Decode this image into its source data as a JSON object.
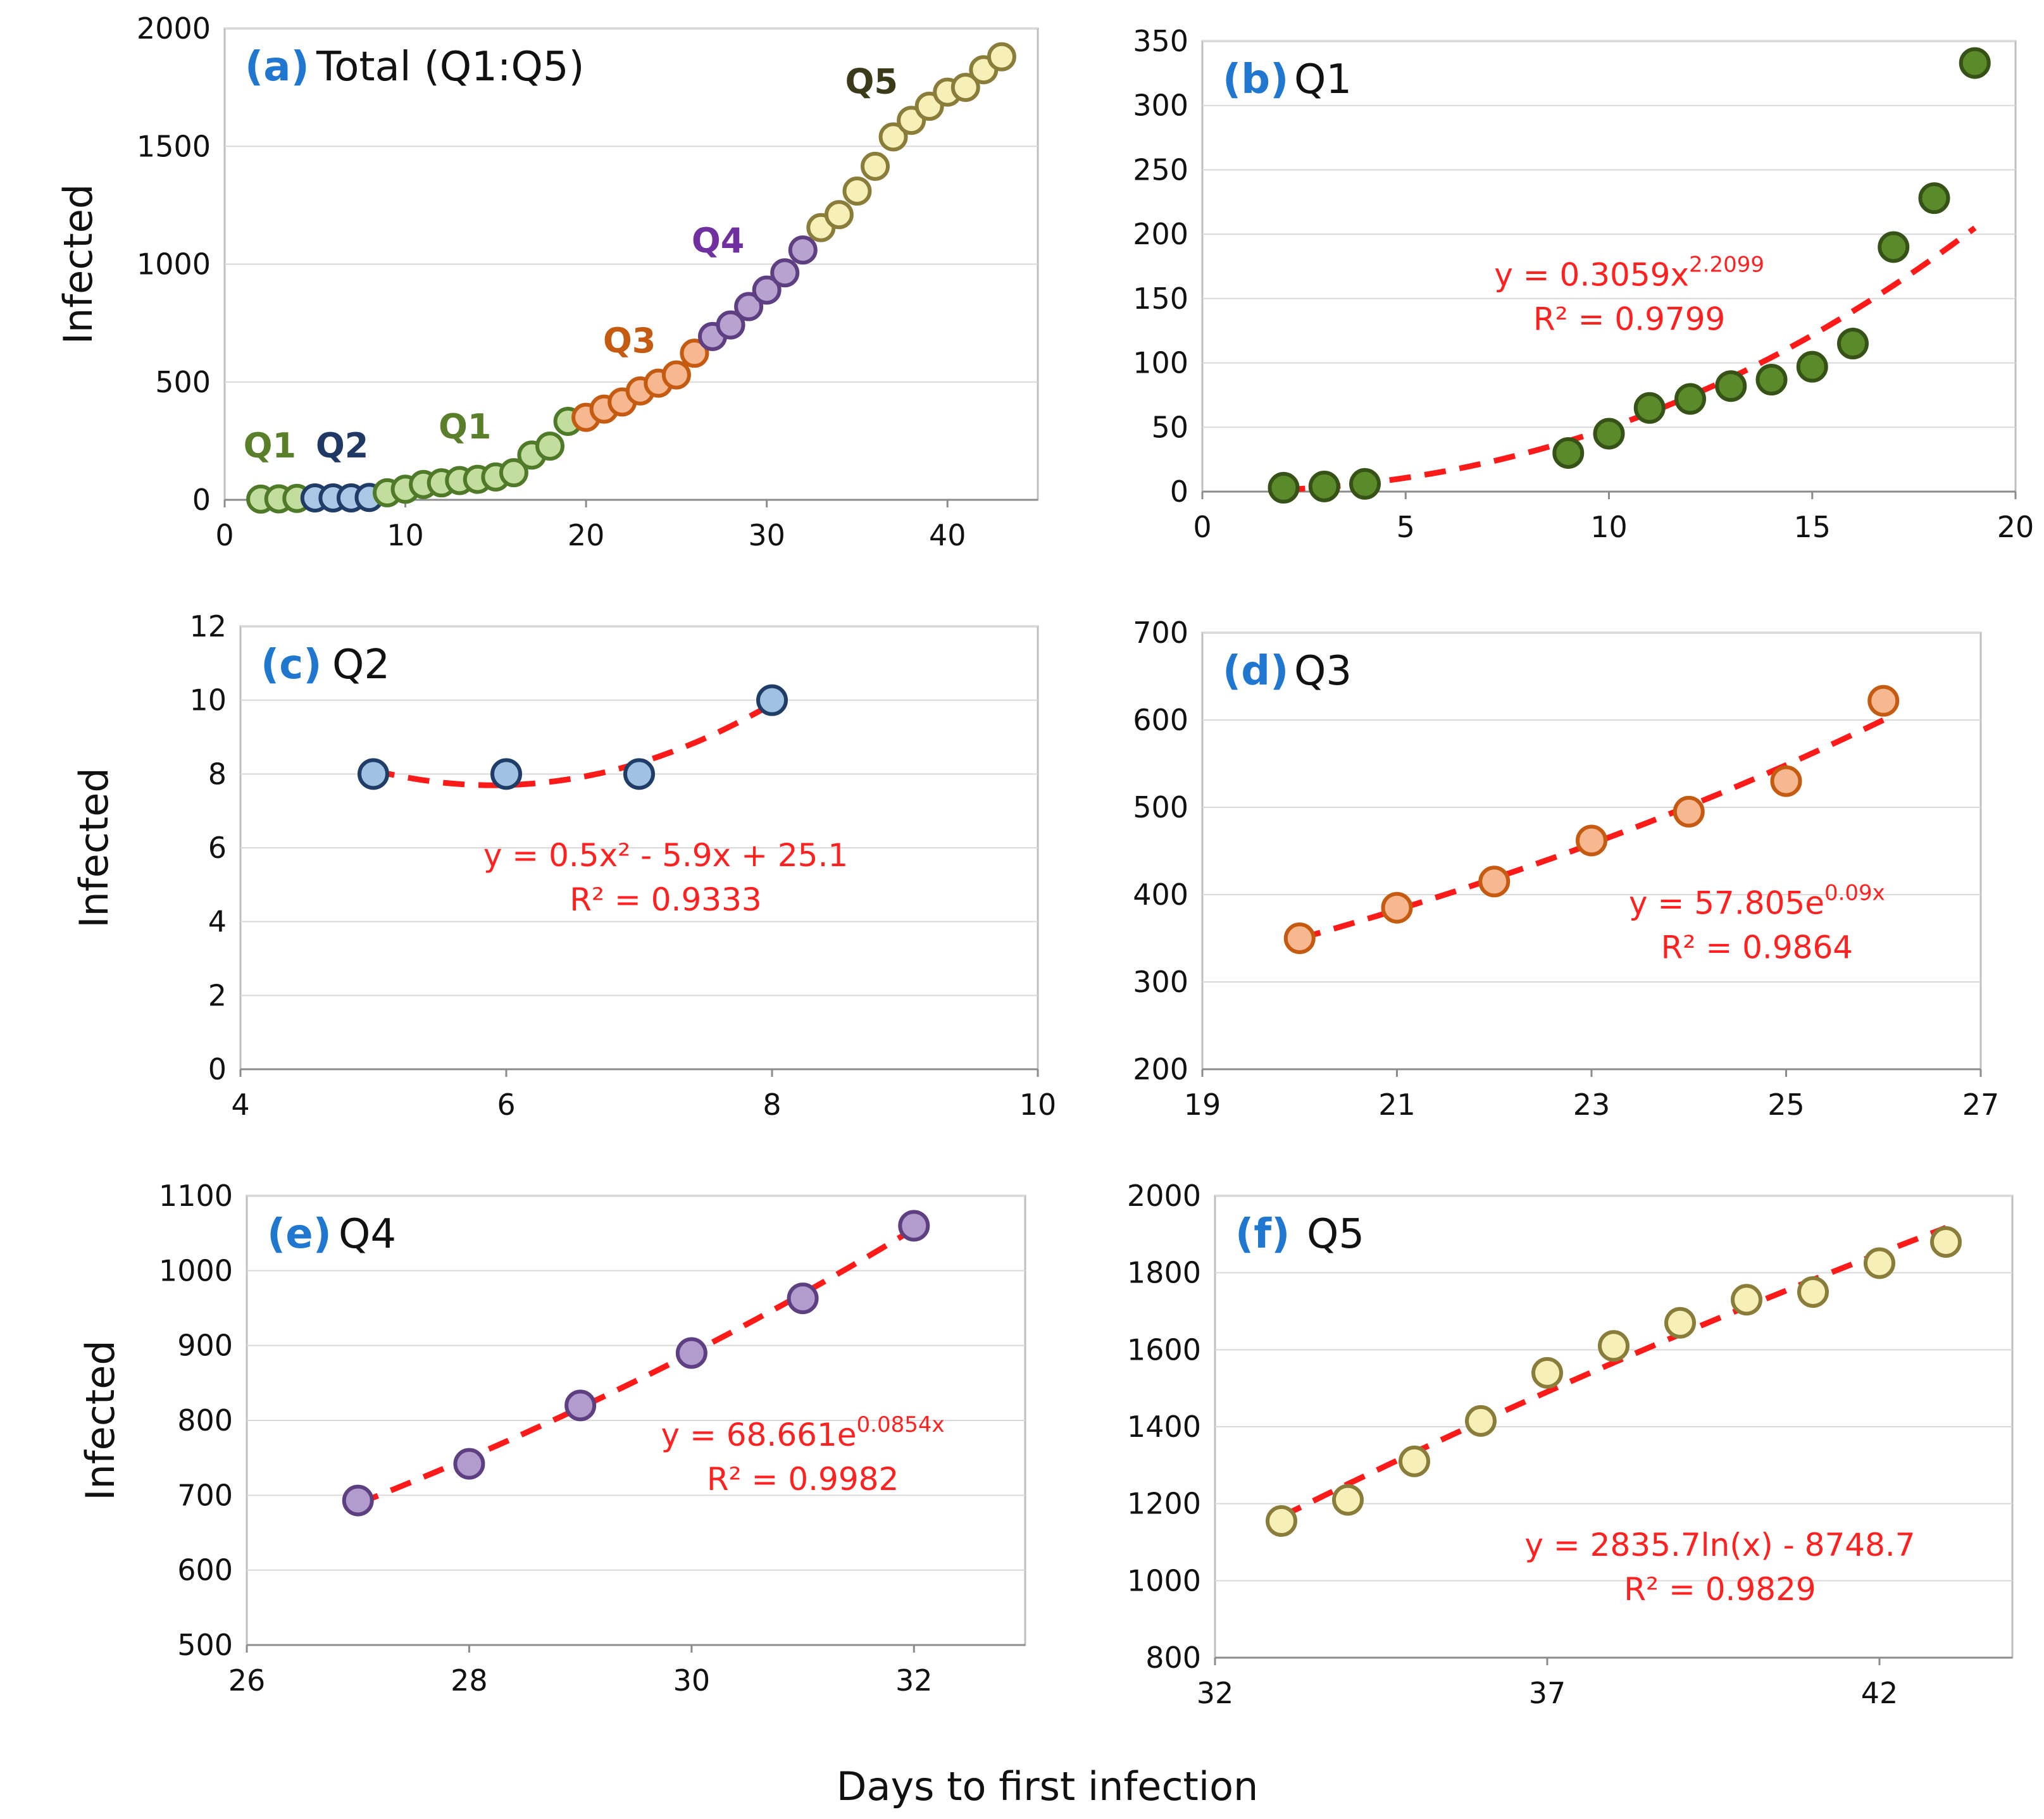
{
  "x_axis_label": "Days to first infection",
  "chart_data": [
    {
      "id": "a",
      "type": "scatter",
      "label": "(a)",
      "title": "Total (Q1:Q5)",
      "ylabel": "Infected",
      "xlim": [
        0,
        45
      ],
      "ylim": [
        0,
        2000
      ],
      "xticks": [
        0,
        10,
        20,
        30,
        40
      ],
      "yticks": [
        0,
        500,
        1000,
        1500,
        2000
      ],
      "series": [
        {
          "name": "Q1",
          "fill": "#c2dd9e",
          "stroke": "#4f7a28",
          "x": [
            2,
            3,
            4
          ],
          "y": [
            3,
            4,
            6
          ]
        },
        {
          "name": "Q2",
          "fill": "#a8c8e6",
          "stroke": "#1f3d66",
          "x": [
            5,
            6,
            7,
            8
          ],
          "y": [
            8,
            8,
            8,
            10
          ]
        },
        {
          "name": "Q1",
          "fill": "#c2dd9e",
          "stroke": "#4f7a28",
          "x": [
            9,
            10,
            11,
            12,
            13,
            14,
            15,
            16,
            17,
            18,
            19
          ],
          "y": [
            30,
            45,
            65,
            72,
            82,
            87,
            97,
            115,
            190,
            228,
            333
          ]
        },
        {
          "name": "Q3",
          "fill": "#f7b891",
          "stroke": "#c55a11",
          "x": [
            20,
            21,
            22,
            23,
            24,
            25,
            26
          ],
          "y": [
            350,
            385,
            415,
            462,
            495,
            530,
            622
          ]
        },
        {
          "name": "Q4",
          "fill": "#b8a2d0",
          "stroke": "#5e3f82",
          "x": [
            27,
            28,
            29,
            30,
            31,
            32
          ],
          "y": [
            693,
            742,
            820,
            890,
            963,
            1060
          ]
        },
        {
          "name": "Q5",
          "fill": "#f6f0b8",
          "stroke": "#8a7d3a",
          "x": [
            33,
            34,
            35,
            36,
            37,
            38,
            39,
            40,
            41,
            42,
            43
          ],
          "y": [
            1155,
            1210,
            1310,
            1415,
            1540,
            1610,
            1670,
            1730,
            1750,
            1825,
            1880
          ]
        }
      ],
      "annotations": [
        {
          "text": "Q1",
          "x": 2.5,
          "y": 180,
          "color": "#5a7f2a"
        },
        {
          "text": "Q2",
          "x": 6.5,
          "y": 180,
          "color": "#1f3864"
        },
        {
          "text": "Q1",
          "x": 13.3,
          "y": 260,
          "color": "#5a7f2a"
        },
        {
          "text": "Q3",
          "x": 22.4,
          "y": 625,
          "color": "#c55a11"
        },
        {
          "text": "Q4",
          "x": 27.3,
          "y": 1050,
          "color": "#7030a0"
        },
        {
          "text": "Q5",
          "x": 35.8,
          "y": 1725,
          "color": "#3b3b1a"
        }
      ]
    },
    {
      "id": "b",
      "type": "scatter",
      "label": "(b)",
      "title": "Q1",
      "ylabel": "",
      "xlim": [
        0,
        20
      ],
      "ylim": [
        0,
        350
      ],
      "xticks": [
        0,
        5,
        10,
        15,
        20
      ],
      "yticks": [
        0,
        50,
        100,
        150,
        200,
        250,
        300,
        350
      ],
      "series": [
        {
          "name": "Q1",
          "fill": "#5b8a2a",
          "stroke": "#365217",
          "x": [
            2,
            3,
            4,
            9,
            10,
            11,
            12,
            13,
            14,
            15,
            16,
            17,
            18,
            19
          ],
          "y": [
            3,
            4,
            6,
            30,
            45,
            65,
            72,
            82,
            87,
            97,
            115,
            190,
            228,
            333
          ]
        }
      ],
      "fit": {
        "kind": "power",
        "a": 0.3059,
        "b": 2.2099,
        "from": 2,
        "to": 19
      },
      "equation": "y = 0.3059x",
      "equation_sup": "2.2099",
      "r2": "R² = 0.9799",
      "eq_pos": {
        "x": 10.5,
        "y": 160
      }
    },
    {
      "id": "c",
      "type": "scatter",
      "label": "(c)",
      "title": "Q2",
      "ylabel": "Infected",
      "xlim": [
        4,
        10
      ],
      "ylim": [
        0,
        12
      ],
      "xticks": [
        4,
        6,
        8,
        10
      ],
      "yticks": [
        0,
        2,
        4,
        6,
        8,
        10,
        12
      ],
      "series": [
        {
          "name": "Q2",
          "fill": "#9fc2e3",
          "stroke": "#1f3d66",
          "x": [
            5,
            6,
            7,
            8
          ],
          "y": [
            8,
            8,
            8,
            10
          ]
        }
      ],
      "fit": {
        "kind": "poly2",
        "a": 0.5,
        "b": -5.9,
        "c": 25.1,
        "from": 5,
        "to": 8
      },
      "equation": "y = 0.5x² - 5.9x + 25.1",
      "equation_sup": "",
      "r2": "R² = 0.9333",
      "eq_pos": {
        "x": 7.2,
        "y": 5.5
      }
    },
    {
      "id": "d",
      "type": "scatter",
      "label": "(d)",
      "title": "Q3",
      "ylabel": "",
      "xlim": [
        19,
        27
      ],
      "ylim": [
        200,
        700
      ],
      "xticks": [
        19,
        21,
        23,
        25,
        27
      ],
      "yticks": [
        200,
        300,
        400,
        500,
        600,
        700
      ],
      "series": [
        {
          "name": "Q3",
          "fill": "#f7b891",
          "stroke": "#c55a11",
          "x": [
            20,
            21,
            22,
            23,
            24,
            25,
            26
          ],
          "y": [
            350,
            385,
            415,
            462,
            495,
            530,
            622
          ]
        }
      ],
      "fit": {
        "kind": "exp",
        "a": 57.805,
        "b": 0.09,
        "from": 20,
        "to": 26
      },
      "equation": "y = 57.805e",
      "equation_sup": "0.09x",
      "r2": "R² = 0.9864",
      "eq_pos": {
        "x": 24.7,
        "y": 378
      }
    },
    {
      "id": "e",
      "type": "scatter",
      "label": "(e)",
      "title": "Q4",
      "ylabel": "Infected",
      "xlim": [
        26,
        33
      ],
      "ylim": [
        500,
        1100
      ],
      "xticks": [
        26,
        28,
        30,
        32
      ],
      "yticks": [
        500,
        600,
        700,
        800,
        900,
        1000,
        1100
      ],
      "series": [
        {
          "name": "Q4",
          "fill": "#b19ccd",
          "stroke": "#5e3f82",
          "x": [
            27,
            28,
            29,
            30,
            31,
            32
          ],
          "y": [
            693,
            742,
            820,
            890,
            963,
            1060
          ]
        }
      ],
      "fit": {
        "kind": "exp",
        "a": 68.661,
        "b": 0.0854,
        "from": 27,
        "to": 32
      },
      "equation": "y = 68.661e",
      "equation_sup": "0.0854x",
      "r2": "R² = 0.9982",
      "eq_pos": {
        "x": 31.0,
        "y": 766
      }
    },
    {
      "id": "f",
      "type": "scatter",
      "label": "(f)",
      "title": "Q5",
      "ylabel": "",
      "xlim": [
        32,
        44
      ],
      "ylim": [
        800,
        2000
      ],
      "xticks": [
        32,
        37,
        42
      ],
      "yticks": [
        800,
        1000,
        1200,
        1400,
        1600,
        1800,
        2000
      ],
      "series": [
        {
          "name": "Q5",
          "fill": "#f6f0b8",
          "stroke": "#8a7d3a",
          "x": [
            33,
            34,
            35,
            36,
            37,
            38,
            39,
            40,
            41,
            42,
            43
          ],
          "y": [
            1155,
            1210,
            1310,
            1415,
            1540,
            1610,
            1670,
            1730,
            1750,
            1825,
            1880
          ]
        }
      ],
      "fit": {
        "kind": "log",
        "a": 2835.7,
        "b": -8748.7,
        "from": 33,
        "to": 43
      },
      "equation": "y = 2835.7ln(x) - 8748.7",
      "equation_sup": "",
      "r2": "R² = 0.9829",
      "eq_pos": {
        "x": 39.6,
        "y": 1065
      }
    }
  ]
}
